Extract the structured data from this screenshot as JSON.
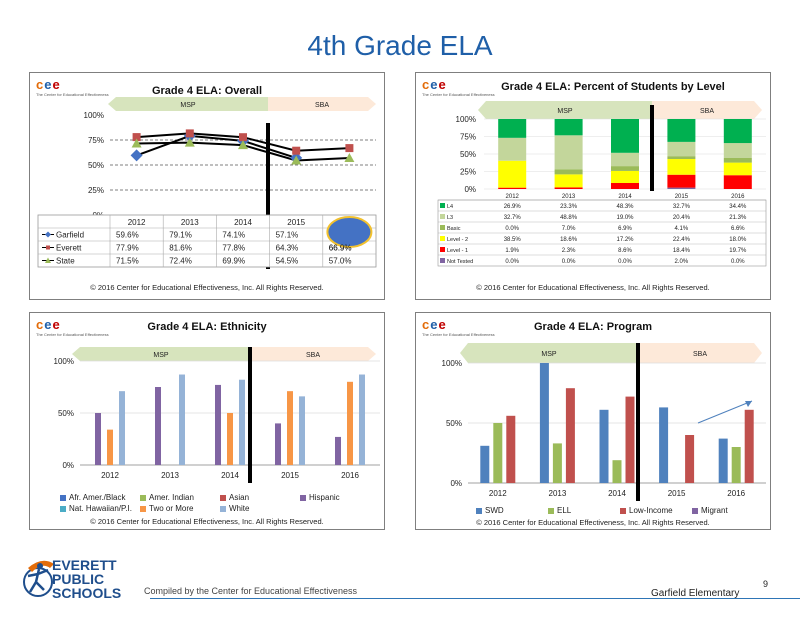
{
  "slide": {
    "title": "4th Grade ELA",
    "compiled_by": "Compiled by the Center for Educational Effectiveness",
    "school": "Garfield Elementary",
    "page_number": "9",
    "brand": {
      "line1": "EVERETT",
      "line2": "PUBLIC",
      "line3": "SCHOOLS"
    }
  },
  "logo": {
    "letters": [
      "c",
      "e",
      "e"
    ],
    "letter_colors": [
      "#e36c09",
      "#1f5fa8",
      "#c00000"
    ],
    "tagline": "The Center for Educational Effectiveness"
  },
  "banner": {
    "left_label": "MSP",
    "right_label": "SBA",
    "left_color": "#d7e4bd",
    "right_color": "#fde9d9"
  },
  "copyright": "© 2016 Center for Educational Effectiveness, Inc. All Rights Reserved.",
  "chart_data": [
    {
      "type": "line",
      "title": "Grade 4 ELA: Overall",
      "categories": [
        "2012",
        "2013",
        "2014",
        "2015",
        "2016"
      ],
      "y_ticks": [
        "100%",
        "75%",
        "50%",
        "25%",
        "0%"
      ],
      "ylim": [
        0,
        100
      ],
      "series": [
        {
          "name": "Garfield",
          "values": [
            59.6,
            79.1,
            74.1,
            57.1,
            null
          ],
          "labels": [
            "59.6%",
            "79.1%",
            "74.1%",
            "57.1%",
            ""
          ],
          "color": "#4472c4",
          "marker": "diamond"
        },
        {
          "name": "Everett",
          "values": [
            77.9,
            81.6,
            77.8,
            64.3,
            66.9
          ],
          "labels": [
            "77.9%",
            "81.6%",
            "77.8%",
            "64.3%",
            "66.9%"
          ],
          "color": "#c0504d",
          "marker": "square"
        },
        {
          "name": "State",
          "values": [
            71.5,
            72.4,
            69.9,
            54.5,
            57.0
          ],
          "labels": [
            "71.5%",
            "72.4%",
            "69.9%",
            "54.5%",
            "57.0%"
          ],
          "color": "#9bbb59",
          "marker": "triangle"
        }
      ],
      "highlight": {
        "color": "#4472c4",
        "border": "#f2c12e"
      }
    },
    {
      "type": "bar",
      "stacked": true,
      "title": "Grade 4 ELA: Percent of Students by Level",
      "categories": [
        "2012",
        "2013",
        "2014",
        "2015",
        "2016"
      ],
      "y_ticks": [
        "100%",
        "75%",
        "50%",
        "25%",
        "0%"
      ],
      "ylim": [
        0,
        100
      ],
      "series": [
        {
          "name": "Not Tested",
          "color": "#8064a2",
          "values": [
            0.0,
            0.0,
            0.0,
            2.0,
            0.0
          ],
          "labels": [
            "0.0%",
            "0.0%",
            "0.0%",
            "2.0%",
            "0.0%"
          ]
        },
        {
          "name": "Level - 1",
          "color": "#ff0000",
          "values": [
            1.9,
            2.3,
            8.6,
            18.4,
            19.7
          ],
          "labels": [
            "1.9%",
            "2.3%",
            "8.6%",
            "18.4%",
            "19.7%"
          ]
        },
        {
          "name": "Level - 2",
          "color": "#ffff00",
          "values": [
            38.5,
            18.6,
            17.2,
            22.4,
            18.0
          ],
          "labels": [
            "38.5%",
            "18.6%",
            "17.2%",
            "22.4%",
            "18.0%"
          ]
        },
        {
          "name": "Basic",
          "color": "#9bbb59",
          "values": [
            0.0,
            7.0,
            6.9,
            4.1,
            6.6
          ],
          "labels": [
            "0.0%",
            "7.0%",
            "6.9%",
            "4.1%",
            "6.6%"
          ]
        },
        {
          "name": "L3",
          "color": "#c3d69b",
          "values": [
            32.7,
            48.8,
            19.0,
            20.4,
            21.3
          ],
          "labels": [
            "32.7%",
            "48.8%",
            "19.0%",
            "20.4%",
            "21.3%"
          ]
        },
        {
          "name": "L4",
          "color": "#00b050",
          "values": [
            26.9,
            23.3,
            48.3,
            32.7,
            34.4
          ],
          "labels": [
            "26.9%",
            "23.3%",
            "48.3%",
            "32.7%",
            "34.4%"
          ]
        }
      ],
      "table_order": [
        "L4",
        "L3",
        "Basic",
        "Level - 2",
        "Level - 1",
        "Not Tested"
      ]
    },
    {
      "type": "bar",
      "title": "Grade 4 ELA: Ethnicity",
      "categories": [
        "2012",
        "2013",
        "2014",
        "2015",
        "2016"
      ],
      "y_ticks": [
        "100%",
        "50%",
        "0%"
      ],
      "ylim": [
        0,
        100
      ],
      "series": [
        {
          "name": "Afr. Amer./Black",
          "color": "#4472c4",
          "values": [
            null,
            null,
            null,
            null,
            null
          ]
        },
        {
          "name": "Amer. Indian",
          "color": "#9bbb59",
          "values": [
            null,
            null,
            null,
            null,
            null
          ]
        },
        {
          "name": "Asian",
          "color": "#c0504d",
          "values": [
            null,
            null,
            null,
            null,
            null
          ]
        },
        {
          "name": "Hispanic",
          "color": "#8064a2",
          "values": [
            50,
            75,
            77,
            40,
            27
          ]
        },
        {
          "name": "Nat. Hawaiian/P.I.",
          "color": "#4bacc6",
          "values": [
            null,
            null,
            null,
            null,
            null
          ]
        },
        {
          "name": "Two or More",
          "color": "#f79646",
          "values": [
            34,
            null,
            50,
            71,
            80
          ]
        },
        {
          "name": "White",
          "color": "#95b3d7",
          "values": [
            71,
            87,
            82,
            66,
            87
          ]
        }
      ]
    },
    {
      "type": "bar",
      "title": "Grade 4 ELA: Program",
      "categories": [
        "2012",
        "2013",
        "2014",
        "2015",
        "2016"
      ],
      "y_ticks": [
        "100%",
        "50%",
        "0%"
      ],
      "ylim": [
        0,
        100
      ],
      "series": [
        {
          "name": "SWD",
          "color": "#4f81bd",
          "values": [
            31,
            100,
            61,
            63,
            37
          ]
        },
        {
          "name": "ELL",
          "color": "#9bbb59",
          "values": [
            50,
            33,
            19,
            null,
            30
          ]
        },
        {
          "name": "Low-Income",
          "color": "#c0504d",
          "values": [
            56,
            79,
            72,
            40,
            61
          ]
        },
        {
          "name": "Migrant",
          "color": "#8064a2",
          "values": [
            null,
            null,
            null,
            null,
            null
          ]
        }
      ]
    }
  ]
}
